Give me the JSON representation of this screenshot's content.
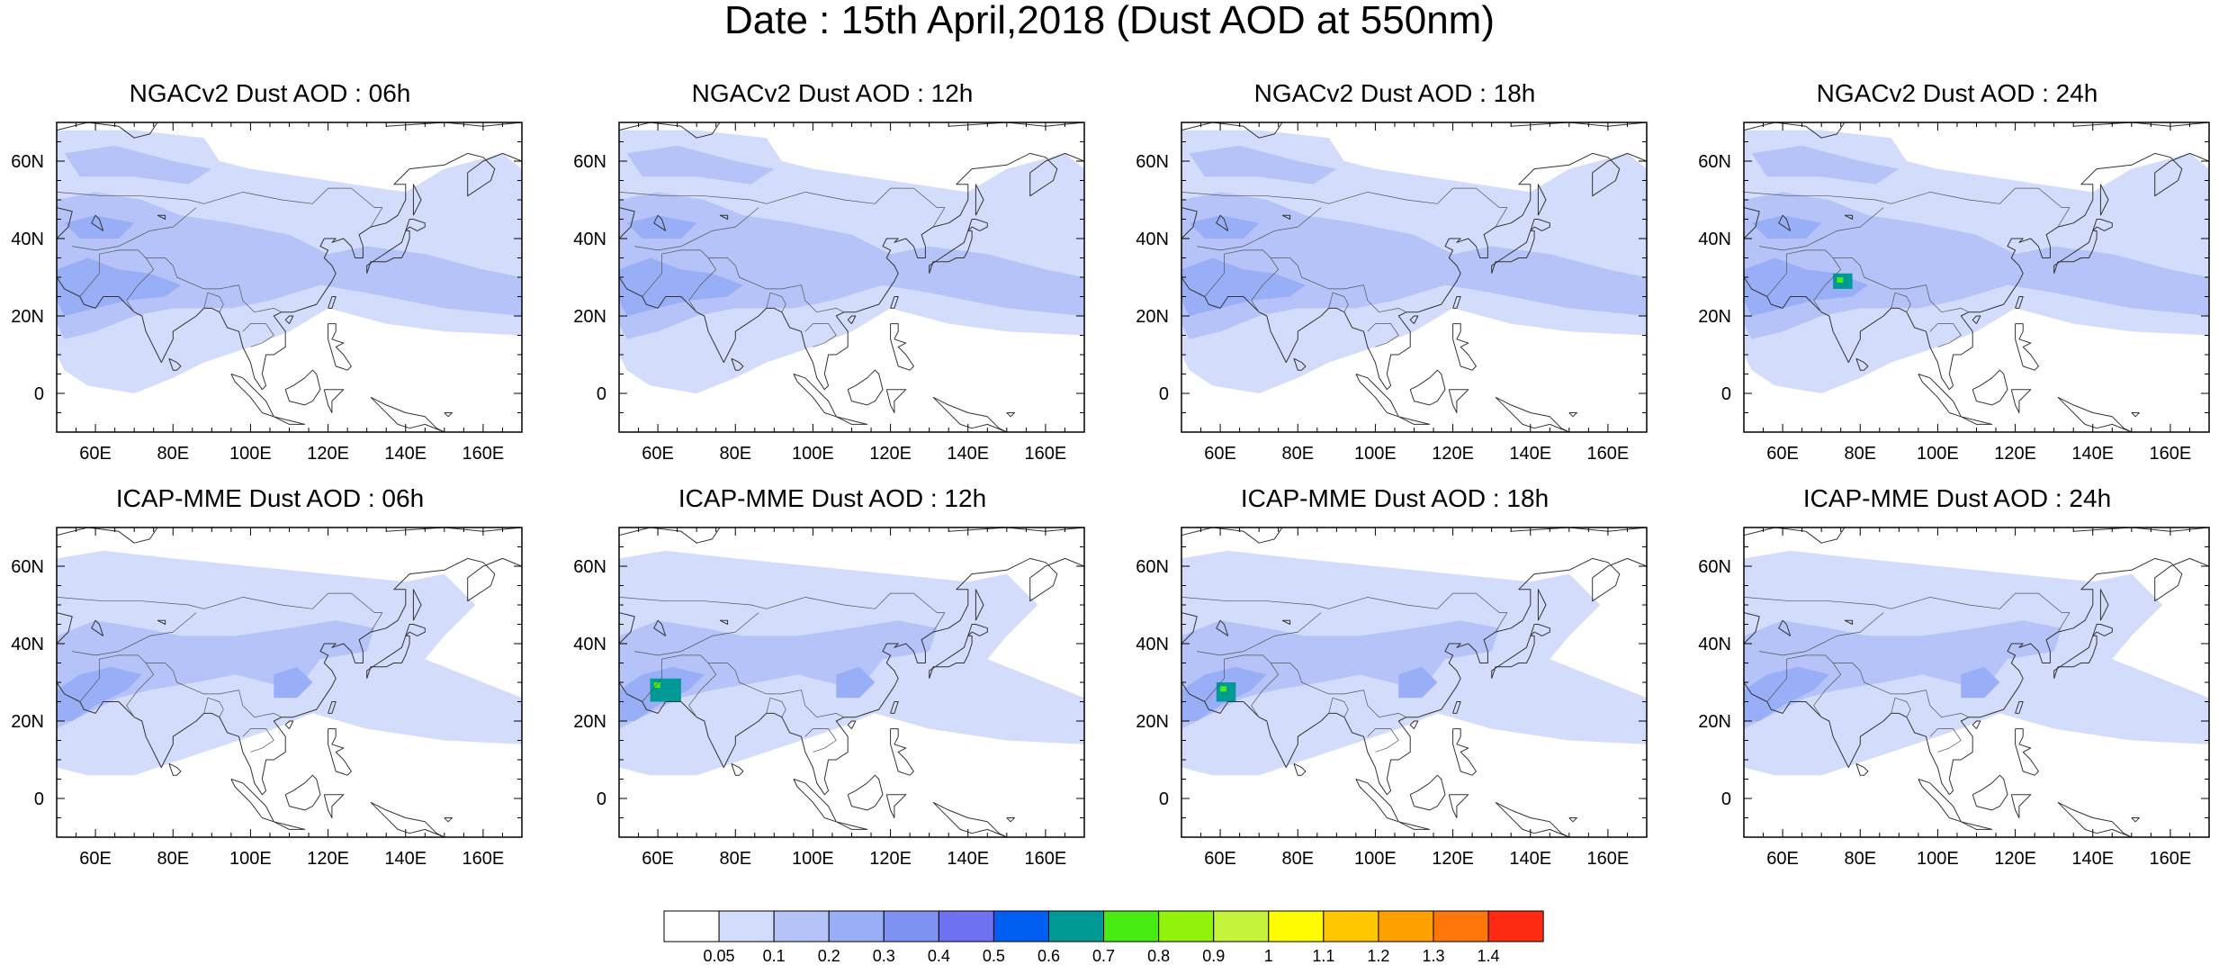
{
  "title": "Date : 15th April,2018 (Dust AOD at 550nm)",
  "map_extent": {
    "lon": [
      50,
      170
    ],
    "lat": [
      -10,
      70
    ]
  },
  "lon_ticks": [
    {
      "v": 60,
      "label": "60E"
    },
    {
      "v": 80,
      "label": "80E"
    },
    {
      "v": 100,
      "label": "100E"
    },
    {
      "v": 120,
      "label": "120E"
    },
    {
      "v": 140,
      "label": "140E"
    },
    {
      "v": 160,
      "label": "160E"
    }
  ],
  "lat_ticks": [
    {
      "v": 60,
      "label": "60N"
    },
    {
      "v": 40,
      "label": "40N"
    },
    {
      "v": 20,
      "label": "20N"
    },
    {
      "v": 0,
      "label": "0"
    }
  ],
  "panels": [
    {
      "title": "NGACv2 Dust AOD : 06h",
      "model": "NGACv2",
      "hour": "06h"
    },
    {
      "title": "NGACv2 Dust AOD : 12h",
      "model": "NGACv2",
      "hour": "12h"
    },
    {
      "title": "NGACv2 Dust AOD : 18h",
      "model": "NGACv2",
      "hour": "18h"
    },
    {
      "title": "NGACv2 Dust AOD : 24h",
      "model": "NGACv2",
      "hour": "24h"
    },
    {
      "title": "ICAP-MME Dust AOD : 06h",
      "model": "ICAP-MME",
      "hour": "06h"
    },
    {
      "title": "ICAP-MME Dust AOD : 12h",
      "model": "ICAP-MME",
      "hour": "12h"
    },
    {
      "title": "ICAP-MME Dust AOD : 18h",
      "model": "ICAP-MME",
      "hour": "18h"
    },
    {
      "title": "ICAP-MME Dust AOD : 24h",
      "model": "ICAP-MME",
      "hour": "24h"
    }
  ],
  "colorbar": {
    "levels": [
      "0.05",
      "0.1",
      "0.2",
      "0.3",
      "0.4",
      "0.5",
      "0.6",
      "0.7",
      "0.8",
      "0.9",
      "1",
      "1.1",
      "1.2",
      "1.3",
      "1.4"
    ],
    "colors": [
      "#ffffff",
      "#d3dcfb",
      "#b5c3f8",
      "#98aef7",
      "#7f93f3",
      "#6e72f0",
      "#005ff2",
      "#009a96",
      "#48ec12",
      "#93f20b",
      "#c5f33c",
      "#fffc00",
      "#ffc700",
      "#ff9f00",
      "#ff760a",
      "#ff2a12"
    ]
  },
  "map_colors": {
    "aod_0.1": "#d3dcfb",
    "aod_0.2": "#b5c3f8",
    "aod_0.3": "#98aef7",
    "aod_0.4": "#7f93f3",
    "aod_0.7": "#009a96",
    "aod_0.8": "#48ec12"
  }
}
